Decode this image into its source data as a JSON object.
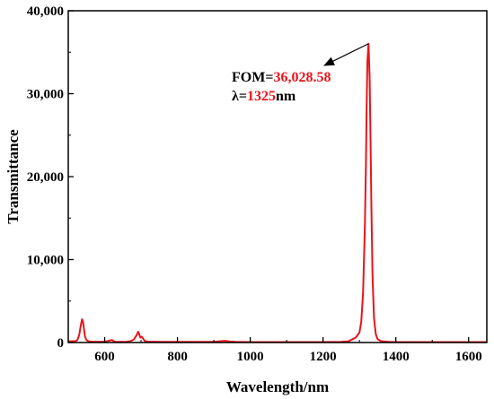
{
  "chart_data": {
    "type": "line",
    "title": "",
    "xlabel": "Wavelength/nm",
    "ylabel": "Transmittance",
    "xlim": [
      500,
      1650
    ],
    "ylim": [
      0,
      40000
    ],
    "x_ticks": [
      600,
      800,
      1000,
      1200,
      1400,
      1600
    ],
    "x_tick_labels": [
      "600",
      "800",
      "1000",
      "1200",
      "1400",
      "1600"
    ],
    "y_ticks": [
      0,
      10000,
      20000,
      30000,
      40000
    ],
    "y_tick_labels": [
      "0",
      "10,000",
      "20,000",
      "30,000",
      "40,000"
    ],
    "grid": false,
    "legend": "none",
    "colors": {
      "line": "#e8141b",
      "annotation_value": "#e8141b",
      "text": "#000000"
    },
    "series": [
      {
        "color": "#e8141b",
        "x": [
          500,
          510,
          520,
          525,
          530,
          535,
          538,
          540,
          543,
          546,
          550,
          555,
          560,
          570,
          580,
          600,
          620,
          625,
          630,
          640,
          660,
          670,
          680,
          688,
          692,
          695,
          698,
          702,
          706,
          710,
          715,
          720,
          740,
          760,
          800,
          850,
          900,
          930,
          945,
          960,
          1000,
          1050,
          1100,
          1150,
          1200,
          1250,
          1270,
          1290,
          1300,
          1305,
          1310,
          1315,
          1318,
          1320,
          1322,
          1325,
          1328,
          1330,
          1333,
          1336,
          1340,
          1345,
          1350,
          1360,
          1380,
          1400,
          1450,
          1500,
          1550,
          1600,
          1650
        ],
        "y": [
          150,
          150,
          180,
          300,
          900,
          2200,
          2800,
          2600,
          1700,
          700,
          300,
          150,
          120,
          100,
          100,
          100,
          300,
          150,
          100,
          80,
          100,
          150,
          350,
          900,
          1300,
          1000,
          600,
          700,
          450,
          200,
          120,
          100,
          100,
          80,
          80,
          80,
          80,
          200,
          120,
          80,
          60,
          50,
          50,
          50,
          50,
          80,
          150,
          600,
          1200,
          2500,
          6000,
          14000,
          22000,
          29000,
          34000,
          36028.58,
          32000,
          26000,
          16000,
          8000,
          3000,
          1000,
          400,
          150,
          80,
          60,
          50,
          50,
          50,
          50,
          50
        ]
      }
    ],
    "annotations": [
      {
        "point": [
          1325,
          36028.58
        ],
        "lines": [
          {
            "prefix": "FOM=",
            "value": "36,028.58",
            "suffix": ""
          },
          {
            "prefix": "λ=",
            "value": "1325",
            "suffix": "nm"
          }
        ]
      }
    ]
  }
}
